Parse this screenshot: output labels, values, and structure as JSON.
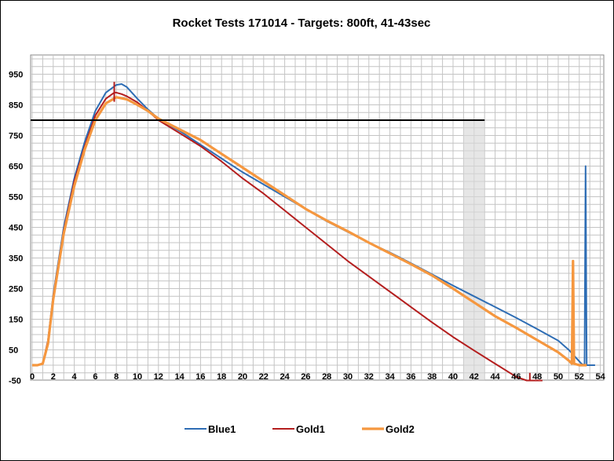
{
  "chart_data": {
    "type": "line",
    "title": "Rocket Tests 171014 - Targets: 800ft, 41-43sec",
    "xlabel": "",
    "ylabel": "",
    "xlim": [
      0,
      54
    ],
    "ylim": [
      -50,
      1000
    ],
    "x_ticks": [
      "0",
      "2",
      "4",
      "6",
      "8",
      "10",
      "12",
      "14",
      "16",
      "18",
      "20",
      "22",
      "24",
      "26",
      "28",
      "30",
      "32",
      "34",
      "36",
      "38",
      "40",
      "42",
      "44",
      "46",
      "48",
      "50",
      "52",
      "54"
    ],
    "y_ticks": [
      "-50",
      "50",
      "150",
      "250",
      "350",
      "450",
      "550",
      "650",
      "750",
      "850",
      "950"
    ],
    "grid": true,
    "legend_position": "bottom",
    "target_altitude": 800,
    "target_line_x": [
      0,
      43
    ],
    "target_window": [
      41,
      43
    ],
    "series": [
      {
        "name": "Blue1",
        "color": "#2e6db4",
        "x": [
          0,
          0.5,
          1,
          1.5,
          2,
          3,
          4,
          5,
          6,
          7,
          8,
          8.5,
          9,
          10,
          11,
          12,
          14,
          16,
          18,
          20,
          22,
          24,
          26,
          28,
          30,
          32,
          34,
          36,
          38,
          40,
          42,
          44,
          46,
          48,
          50,
          51,
          51.8,
          52.2,
          52.5,
          52.6,
          52.7,
          52.8,
          53.5
        ],
        "y": [
          0,
          0,
          5,
          80,
          230,
          450,
          610,
          730,
          830,
          890,
          915,
          918,
          908,
          870,
          835,
          805,
          765,
          720,
          675,
          630,
          590,
          550,
          510,
          470,
          435,
          400,
          368,
          333,
          297,
          260,
          225,
          190,
          155,
          118,
          80,
          50,
          20,
          5,
          0,
          650,
          0,
          0,
          0
        ]
      },
      {
        "name": "Gold1",
        "color": "#b41e1e",
        "x": [
          0,
          0.5,
          1,
          1.5,
          2,
          3,
          4,
          5,
          6,
          7,
          7.8,
          8,
          8.5,
          9,
          10,
          11,
          12,
          14,
          16,
          18,
          20,
          22,
          24,
          26,
          28,
          30,
          32,
          34,
          36,
          38,
          40,
          42,
          44,
          46,
          47,
          47.5,
          48.5
        ],
        "y": [
          0,
          0,
          5,
          80,
          225,
          440,
          600,
          715,
          815,
          870,
          890,
          890,
          885,
          878,
          858,
          830,
          800,
          758,
          715,
          665,
          610,
          560,
          505,
          450,
          395,
          340,
          290,
          240,
          190,
          140,
          92,
          48,
          5,
          -38,
          -50,
          -50,
          -50
        ]
      },
      {
        "name": "Gold2",
        "color": "#f5973f",
        "x": [
          0,
          0.5,
          1,
          1.5,
          2,
          3,
          4,
          5,
          6,
          7,
          8,
          9,
          10,
          11,
          12,
          14,
          16,
          18,
          20,
          22,
          24,
          26,
          28,
          30,
          32,
          34,
          36,
          38,
          40,
          42,
          44,
          46,
          48,
          50,
          51,
          51.3,
          51.4,
          51.5,
          52,
          52.7
        ],
        "y": [
          0,
          0,
          5,
          70,
          215,
          430,
          585,
          705,
          800,
          855,
          875,
          868,
          850,
          830,
          805,
          770,
          735,
          690,
          645,
          600,
          555,
          510,
          472,
          437,
          400,
          365,
          330,
          293,
          250,
          205,
          160,
          122,
          82,
          42,
          15,
          5,
          340,
          5,
          0,
          0
        ]
      }
    ]
  }
}
